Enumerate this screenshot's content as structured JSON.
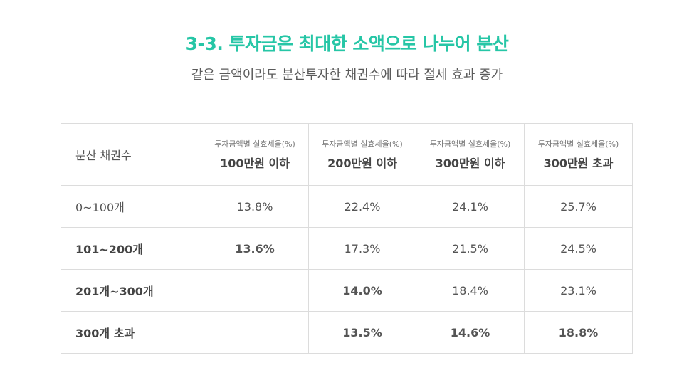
{
  "title": "3-3. 투자금은 최대한 소액으로 나누어 분산",
  "subtitle": "같은 금액이라도 분산투자한 채권수에 따라 절세 효과 증가",
  "accent_color": "#26c6a6",
  "table": {
    "corner": "분산 채권수",
    "columns": [
      {
        "sub": "투자금액별 실효세율(%)",
        "main": "100만원 이하"
      },
      {
        "sub": "투자금액별 실효세율(%)",
        "main": "200만원 이하"
      },
      {
        "sub": "투자금액별 실효세율(%)",
        "main": "300만원 이하"
      },
      {
        "sub": "투자금액별 실효세율(%)",
        "main": "300만원 초과"
      }
    ],
    "rows": [
      {
        "label": "0~100개",
        "cells": [
          "13.8%",
          "22.4%",
          "24.1%",
          "25.7%"
        ]
      },
      {
        "label": "101~200개",
        "cells": [
          "13.6%",
          "17.3%",
          "21.5%",
          "24.5%"
        ]
      },
      {
        "label": "201개~300개",
        "cells": [
          "",
          "14.0%",
          "18.4%",
          "23.1%"
        ]
      },
      {
        "label": "300개 초과",
        "cells": [
          "",
          "13.5%",
          "14.6%",
          "18.8%"
        ]
      }
    ]
  }
}
